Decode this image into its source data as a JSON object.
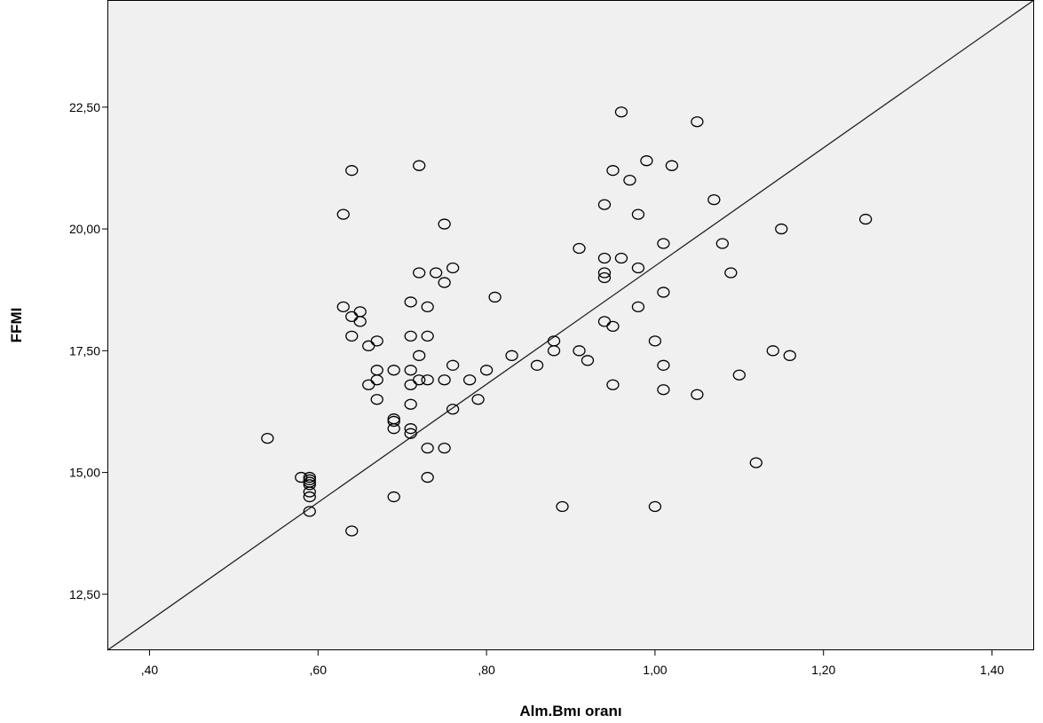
{
  "chart_data": {
    "type": "scatter",
    "xlabel": "Alm.Bmı oranı",
    "ylabel": "FFMI",
    "xlim": [
      0.35,
      1.45
    ],
    "ylim": [
      11.35,
      24.7
    ],
    "x_ticks": [
      0.4,
      0.6,
      0.8,
      1.0,
      1.2,
      1.4
    ],
    "x_tick_labels": [
      ",40",
      ",60",
      ",80",
      "1,00",
      "1,20",
      "1,40"
    ],
    "y_ticks": [
      12.5,
      15.0,
      17.5,
      20.0,
      22.5
    ],
    "y_tick_labels": [
      "12,50",
      "15,00",
      "17,50",
      "20,00",
      "22,50"
    ],
    "grid": false,
    "plot_background": "#f0f0f0",
    "marker": "open-circle",
    "marker_color": "#000000",
    "reference_line": {
      "type": "diagonal",
      "from": [
        0.35,
        11.35
      ],
      "to": [
        1.45,
        24.7
      ]
    },
    "points": [
      [
        0.54,
        15.7
      ],
      [
        0.58,
        14.9
      ],
      [
        0.59,
        14.9
      ],
      [
        0.59,
        14.85
      ],
      [
        0.59,
        14.8
      ],
      [
        0.59,
        14.75
      ],
      [
        0.59,
        14.6
      ],
      [
        0.59,
        14.5
      ],
      [
        0.59,
        14.2
      ],
      [
        0.63,
        20.3
      ],
      [
        0.63,
        18.4
      ],
      [
        0.64,
        21.2
      ],
      [
        0.64,
        18.2
      ],
      [
        0.64,
        17.8
      ],
      [
        0.64,
        13.8
      ],
      [
        0.65,
        18.3
      ],
      [
        0.65,
        18.1
      ],
      [
        0.66,
        17.6
      ],
      [
        0.66,
        16.8
      ],
      [
        0.67,
        17.7
      ],
      [
        0.67,
        17.1
      ],
      [
        0.67,
        16.9
      ],
      [
        0.67,
        16.5
      ],
      [
        0.69,
        17.1
      ],
      [
        0.69,
        16.1
      ],
      [
        0.69,
        16.05
      ],
      [
        0.69,
        15.9
      ],
      [
        0.69,
        14.5
      ],
      [
        0.71,
        18.5
      ],
      [
        0.71,
        17.8
      ],
      [
        0.71,
        17.1
      ],
      [
        0.71,
        16.8
      ],
      [
        0.71,
        16.4
      ],
      [
        0.71,
        15.9
      ],
      [
        0.71,
        15.8
      ],
      [
        0.72,
        21.3
      ],
      [
        0.72,
        19.1
      ],
      [
        0.72,
        17.4
      ],
      [
        0.72,
        16.9
      ],
      [
        0.73,
        18.4
      ],
      [
        0.73,
        17.8
      ],
      [
        0.73,
        16.9
      ],
      [
        0.73,
        15.5
      ],
      [
        0.73,
        14.9
      ],
      [
        0.74,
        19.1
      ],
      [
        0.75,
        20.1
      ],
      [
        0.75,
        18.9
      ],
      [
        0.75,
        16.9
      ],
      [
        0.75,
        15.5
      ],
      [
        0.76,
        19.2
      ],
      [
        0.76,
        17.2
      ],
      [
        0.76,
        16.3
      ],
      [
        0.78,
        16.9
      ],
      [
        0.79,
        16.5
      ],
      [
        0.8,
        17.1
      ],
      [
        0.81,
        18.6
      ],
      [
        0.83,
        17.4
      ],
      [
        0.86,
        17.2
      ],
      [
        0.88,
        17.7
      ],
      [
        0.88,
        17.5
      ],
      [
        0.89,
        14.3
      ],
      [
        0.91,
        19.6
      ],
      [
        0.91,
        17.5
      ],
      [
        0.92,
        17.3
      ],
      [
        0.94,
        20.5
      ],
      [
        0.94,
        19.4
      ],
      [
        0.94,
        19.1
      ],
      [
        0.94,
        19.0
      ],
      [
        0.94,
        18.1
      ],
      [
        0.95,
        21.2
      ],
      [
        0.95,
        18.0
      ],
      [
        0.95,
        16.8
      ],
      [
        0.96,
        22.4
      ],
      [
        0.96,
        19.4
      ],
      [
        0.97,
        21.0
      ],
      [
        0.98,
        20.3
      ],
      [
        0.98,
        19.2
      ],
      [
        0.98,
        18.4
      ],
      [
        0.99,
        21.4
      ],
      [
        1.0,
        17.7
      ],
      [
        1.0,
        14.3
      ],
      [
        1.01,
        19.7
      ],
      [
        1.01,
        18.7
      ],
      [
        1.01,
        17.2
      ],
      [
        1.01,
        16.7
      ],
      [
        1.02,
        21.3
      ],
      [
        1.05,
        22.2
      ],
      [
        1.05,
        16.6
      ],
      [
        1.07,
        20.6
      ],
      [
        1.08,
        19.7
      ],
      [
        1.09,
        19.1
      ],
      [
        1.1,
        17.0
      ],
      [
        1.12,
        15.2
      ],
      [
        1.14,
        17.5
      ],
      [
        1.15,
        20.0
      ],
      [
        1.16,
        17.4
      ],
      [
        1.25,
        20.2
      ]
    ]
  }
}
